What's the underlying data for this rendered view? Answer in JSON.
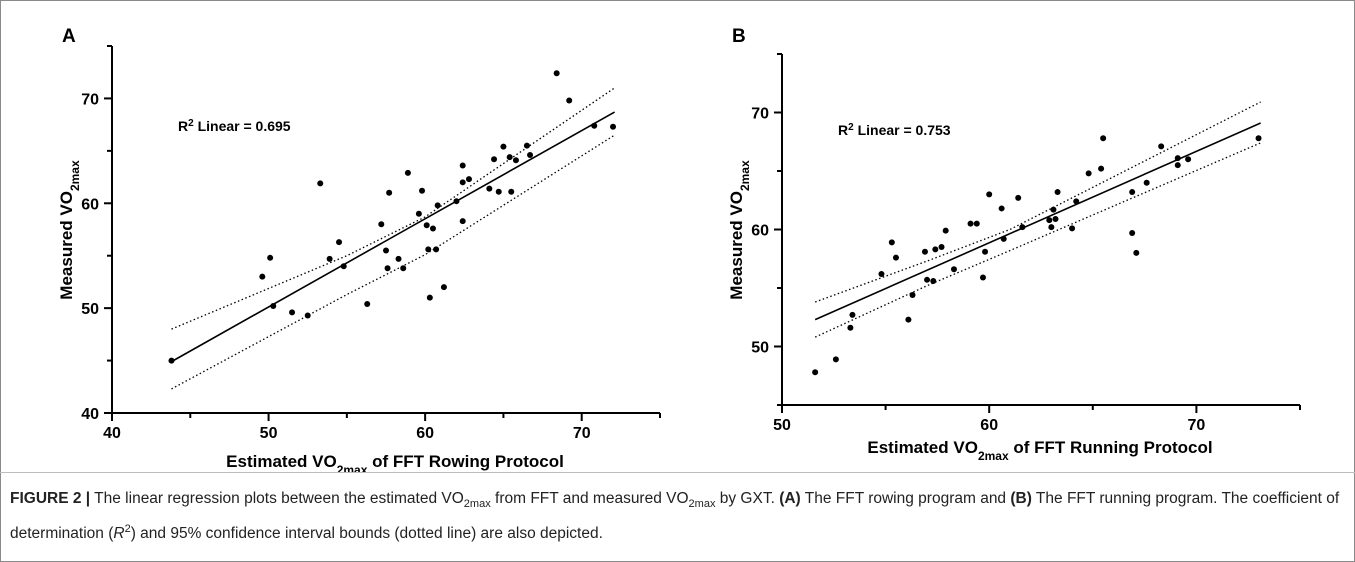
{
  "chart_data": [
    {
      "type": "scatter",
      "panel_label": "A",
      "annotation_prefix": "R",
      "annotation_sup": "2",
      "annotation_suffix": " Linear = 0.695",
      "xlabel_pre": "Estimated VO",
      "xlabel_sub": "2max",
      "xlabel_post": " of FFT Rowing Protocol",
      "ylabel_pre": "Measured VO",
      "ylabel_sub": "2max",
      "xlim": [
        40,
        75
      ],
      "ylim": [
        40,
        75
      ],
      "xticks": [
        40,
        50,
        60,
        70
      ],
      "yticks": [
        40,
        50,
        60,
        70
      ],
      "xticklabels": [
        "40",
        "50",
        "60",
        "70"
      ],
      "yticklabels": [
        "40",
        "50",
        "60",
        "70"
      ],
      "regression_line": {
        "x": [
          43.8,
          72.1
        ],
        "y": [
          44.9,
          68.7
        ]
      },
      "ci_upper": {
        "x": [
          43.8,
          55,
          60,
          72.1
        ],
        "y": [
          48.0,
          55.0,
          58.7,
          71.0
        ]
      },
      "ci_lower": {
        "x": [
          43.8,
          55,
          60,
          72.1
        ],
        "y": [
          42.3,
          51.3,
          55.1,
          66.5
        ]
      },
      "points": [
        {
          "x": 43.8,
          "y": 45.0
        },
        {
          "x": 49.6,
          "y": 53.0
        },
        {
          "x": 50.1,
          "y": 54.8
        },
        {
          "x": 50.3,
          "y": 50.2
        },
        {
          "x": 51.5,
          "y": 49.6
        },
        {
          "x": 52.5,
          "y": 49.3
        },
        {
          "x": 53.3,
          "y": 61.9
        },
        {
          "x": 53.9,
          "y": 54.7
        },
        {
          "x": 54.5,
          "y": 56.3
        },
        {
          "x": 54.8,
          "y": 54.0
        },
        {
          "x": 56.3,
          "y": 50.4
        },
        {
          "x": 57.2,
          "y": 58.0
        },
        {
          "x": 57.5,
          "y": 55.5
        },
        {
          "x": 57.6,
          "y": 53.8
        },
        {
          "x": 57.7,
          "y": 61.0
        },
        {
          "x": 58.3,
          "y": 54.7
        },
        {
          "x": 58.6,
          "y": 53.8
        },
        {
          "x": 58.9,
          "y": 62.9
        },
        {
          "x": 59.6,
          "y": 59.0
        },
        {
          "x": 59.8,
          "y": 61.2
        },
        {
          "x": 60.1,
          "y": 57.9
        },
        {
          "x": 60.2,
          "y": 55.6
        },
        {
          "x": 60.3,
          "y": 51.0
        },
        {
          "x": 60.5,
          "y": 57.6
        },
        {
          "x": 60.7,
          "y": 55.6
        },
        {
          "x": 60.8,
          "y": 59.8
        },
        {
          "x": 61.2,
          "y": 52.0
        },
        {
          "x": 62.0,
          "y": 60.2
        },
        {
          "x": 62.4,
          "y": 62.0
        },
        {
          "x": 62.4,
          "y": 63.6
        },
        {
          "x": 62.4,
          "y": 58.3
        },
        {
          "x": 62.8,
          "y": 62.3
        },
        {
          "x": 64.1,
          "y": 61.4
        },
        {
          "x": 64.4,
          "y": 64.2
        },
        {
          "x": 64.7,
          "y": 61.1
        },
        {
          "x": 65.0,
          "y": 65.4
        },
        {
          "x": 65.4,
          "y": 64.4
        },
        {
          "x": 65.5,
          "y": 61.1
        },
        {
          "x": 65.8,
          "y": 64.1
        },
        {
          "x": 66.5,
          "y": 65.5
        },
        {
          "x": 66.7,
          "y": 64.6
        },
        {
          "x": 68.4,
          "y": 72.4
        },
        {
          "x": 69.2,
          "y": 69.8
        },
        {
          "x": 70.8,
          "y": 67.4
        },
        {
          "x": 72.0,
          "y": 67.3
        }
      ]
    },
    {
      "type": "scatter",
      "panel_label": "B",
      "annotation_prefix": "R",
      "annotation_sup": "2",
      "annotation_suffix": " Linear = 0.753",
      "xlabel_pre": "Estimated VO",
      "xlabel_sub": "2max",
      "xlabel_post": " of FFT Running Protocol",
      "ylabel_pre": "Measured VO",
      "ylabel_sub": "2max",
      "xlim": [
        50,
        75
      ],
      "ylim": [
        45,
        75
      ],
      "xticks": [
        50,
        60,
        70
      ],
      "yticks": [
        50,
        60,
        70
      ],
      "xticklabels": [
        "50",
        "60",
        "70"
      ],
      "yticklabels": [
        "50",
        "60",
        "70"
      ],
      "regression_line": {
        "x": [
          51.6,
          73.1
        ],
        "y": [
          52.3,
          69.1
        ]
      },
      "ci_upper": {
        "x": [
          51.6,
          57,
          61,
          73.1
        ],
        "y": [
          53.8,
          57.3,
          60.0,
          70.9
        ]
      },
      "ci_lower": {
        "x": [
          51.6,
          57,
          61,
          73.1
        ],
        "y": [
          50.8,
          55.2,
          58.2,
          67.4
        ]
      },
      "points": [
        {
          "x": 51.6,
          "y": 47.8
        },
        {
          "x": 52.6,
          "y": 48.9
        },
        {
          "x": 53.3,
          "y": 51.6
        },
        {
          "x": 53.4,
          "y": 52.7
        },
        {
          "x": 54.8,
          "y": 56.2
        },
        {
          "x": 55.3,
          "y": 58.9
        },
        {
          "x": 55.5,
          "y": 57.6
        },
        {
          "x": 56.1,
          "y": 52.3
        },
        {
          "x": 56.3,
          "y": 54.4
        },
        {
          "x": 56.9,
          "y": 58.1
        },
        {
          "x": 57.0,
          "y": 55.7
        },
        {
          "x": 57.3,
          "y": 55.6
        },
        {
          "x": 57.4,
          "y": 58.3
        },
        {
          "x": 57.7,
          "y": 58.5
        },
        {
          "x": 57.9,
          "y": 59.9
        },
        {
          "x": 58.3,
          "y": 56.6
        },
        {
          "x": 59.1,
          "y": 60.5
        },
        {
          "x": 59.4,
          "y": 60.5
        },
        {
          "x": 59.7,
          "y": 55.9
        },
        {
          "x": 59.8,
          "y": 58.1
        },
        {
          "x": 60.0,
          "y": 63.0
        },
        {
          "x": 60.6,
          "y": 61.8
        },
        {
          "x": 60.7,
          "y": 59.2
        },
        {
          "x": 61.4,
          "y": 62.7
        },
        {
          "x": 61.6,
          "y": 60.2
        },
        {
          "x": 62.9,
          "y": 60.8
        },
        {
          "x": 63.0,
          "y": 60.2
        },
        {
          "x": 63.1,
          "y": 61.7
        },
        {
          "x": 63.2,
          "y": 60.9
        },
        {
          "x": 63.3,
          "y": 63.2
        },
        {
          "x": 64.0,
          "y": 60.1
        },
        {
          "x": 64.2,
          "y": 62.4
        },
        {
          "x": 64.8,
          "y": 64.8
        },
        {
          "x": 65.4,
          "y": 65.2
        },
        {
          "x": 65.5,
          "y": 67.8
        },
        {
          "x": 66.9,
          "y": 63.2
        },
        {
          "x": 66.9,
          "y": 59.7
        },
        {
          "x": 67.1,
          "y": 58.0
        },
        {
          "x": 67.6,
          "y": 64.0
        },
        {
          "x": 68.3,
          "y": 67.1
        },
        {
          "x": 69.1,
          "y": 65.5
        },
        {
          "x": 69.1,
          "y": 66.1
        },
        {
          "x": 69.6,
          "y": 66.0
        },
        {
          "x": 73.0,
          "y": 67.8
        }
      ]
    }
  ],
  "caption": {
    "figure_label": "FIGURE 2 |",
    "t1": " The linear regression plots between the estimated VO",
    "t1_sub": "2max",
    "t2": " from FFT and measured VO",
    "t2_sub": "2max",
    "t3": " by GXT. ",
    "a_label": "(A)",
    "t4": " The FFT rowing program and ",
    "b_label": "(B)",
    "t5": " The FFT running program. The coefficient of determination (",
    "r_italic": "R",
    "r_sup": "2",
    "t6": ") and 95% confidence interval bounds (dotted line) are also depicted."
  }
}
